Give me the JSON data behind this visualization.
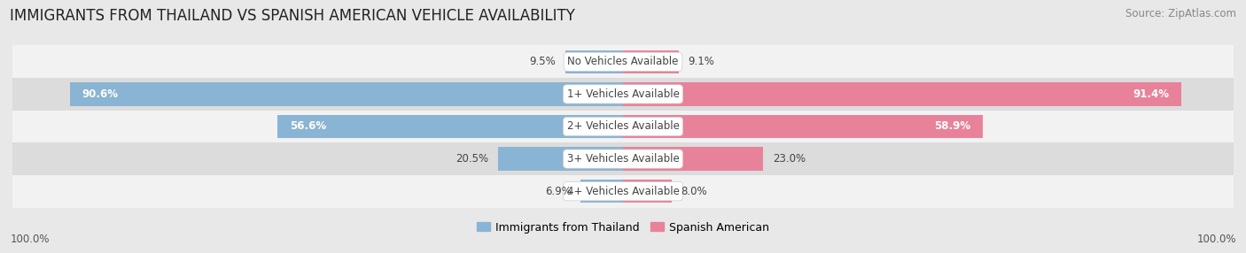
{
  "title": "IMMIGRANTS FROM THAILAND VS SPANISH AMERICAN VEHICLE AVAILABILITY",
  "source": "Source: ZipAtlas.com",
  "categories": [
    "No Vehicles Available",
    "1+ Vehicles Available",
    "2+ Vehicles Available",
    "3+ Vehicles Available",
    "4+ Vehicles Available"
  ],
  "thailand_values": [
    9.5,
    90.6,
    56.6,
    20.5,
    6.9
  ],
  "spanish_values": [
    9.1,
    91.4,
    58.9,
    23.0,
    8.0
  ],
  "thailand_color": "#8ab4d4",
  "spanish_color": "#e8829a",
  "thailand_color_light": "#aac8e0",
  "spanish_color_light": "#f0a8bc",
  "thailand_label": "Immigrants from Thailand",
  "spanish_label": "Spanish American",
  "bar_height": 0.72,
  "bg_color": "#e8e8e8",
  "row_bg_light": "#f2f2f2",
  "row_bg_dark": "#dcdcdc",
  "max_value": 100.0,
  "axis_label_left": "100.0%",
  "axis_label_right": "100.0%",
  "title_fontsize": 12,
  "source_fontsize": 8.5,
  "label_fontsize": 8.5,
  "category_fontsize": 8.5
}
